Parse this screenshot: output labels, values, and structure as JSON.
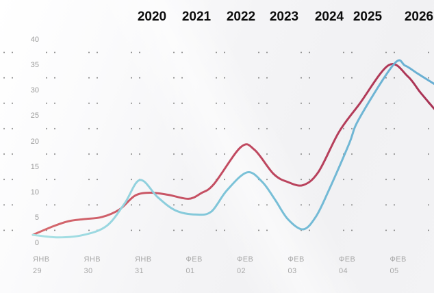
{
  "header": {
    "years": [
      "2020",
      "2021",
      "2022",
      "2023",
      "2024",
      "2025",
      "2026"
    ]
  },
  "chart_data": {
    "type": "line",
    "title": "",
    "xlabel": "",
    "ylabel": "",
    "ylim": [
      0,
      40
    ],
    "y_ticks": [
      40,
      35,
      30,
      25,
      20,
      15,
      10,
      5,
      0
    ],
    "grid": "dotted",
    "legend": "none",
    "categories": [
      {
        "month": "ЯНВ",
        "day": "29"
      },
      {
        "month": "ЯНВ",
        "day": "30"
      },
      {
        "month": "ЯНВ",
        "day": "31"
      },
      {
        "month": "ФЕВ",
        "day": "01"
      },
      {
        "month": "ФЕВ",
        "day": "02"
      },
      {
        "month": "ФЕВ",
        "day": "03"
      },
      {
        "month": "ФЕВ",
        "day": "04"
      },
      {
        "month": "ФЕВ",
        "day": "05"
      }
    ],
    "x_unit": "day index (0 = ЯНВ 29, 1 unit = one day column)",
    "series": [
      {
        "name": "red-line",
        "type": "line",
        "gradient": [
          "#d66a6e",
          "#c24b61",
          "#a93355"
        ],
        "points": [
          [
            0,
            1.6
          ],
          [
            0.4,
            3.3
          ],
          [
            0.7,
            4.3
          ],
          [
            1,
            4.7
          ],
          [
            1.35,
            5.1
          ],
          [
            1.7,
            6.6
          ],
          [
            2,
            9.3
          ],
          [
            2.3,
            9.9
          ],
          [
            2.65,
            9.5
          ],
          [
            3.05,
            8.7
          ],
          [
            3.3,
            9.8
          ],
          [
            3.55,
            11.6
          ],
          [
            4.08,
            18.9
          ],
          [
            4.35,
            18.3
          ],
          [
            4.72,
            13.6
          ],
          [
            5.0,
            12.0
          ],
          [
            5.3,
            11.4
          ],
          [
            5.6,
            14.0
          ],
          [
            6.0,
            21.8
          ],
          [
            6.4,
            27.3
          ],
          [
            6.98,
            35.0
          ],
          [
            7.35,
            32.8
          ],
          [
            7.6,
            29.6
          ],
          [
            7.87,
            26.4
          ]
        ]
      },
      {
        "name": "blue-line",
        "type": "line",
        "gradient": [
          "#abe3e5",
          "#7cc3d8",
          "#68aed2"
        ],
        "points": [
          [
            0,
            1.6
          ],
          [
            0.5,
            1.1
          ],
          [
            1,
            1.6
          ],
          [
            1.45,
            3.4
          ],
          [
            1.8,
            7.8
          ],
          [
            2.1,
            12.4
          ],
          [
            2.45,
            9.0
          ],
          [
            2.8,
            6.4
          ],
          [
            3.2,
            5.6
          ],
          [
            3.5,
            6.2
          ],
          [
            3.8,
            10.3
          ],
          [
            4.2,
            13.9
          ],
          [
            4.5,
            12.0
          ],
          [
            4.75,
            8.5
          ],
          [
            5.0,
            4.7
          ],
          [
            5.3,
            2.7
          ],
          [
            5.55,
            5.2
          ],
          [
            5.8,
            10.3
          ],
          [
            6.2,
            19.5
          ],
          [
            6.4,
            24.5
          ],
          [
            7.08,
            35.2
          ],
          [
            7.3,
            34.9
          ],
          [
            7.55,
            33.3
          ],
          [
            7.87,
            31.3
          ]
        ]
      }
    ]
  },
  "colors": {
    "background": "#f2f2f4",
    "year_text": "#0c0c0c",
    "axis_text": "#9a9a9a",
    "grid_dot": "#8c8c8c"
  }
}
